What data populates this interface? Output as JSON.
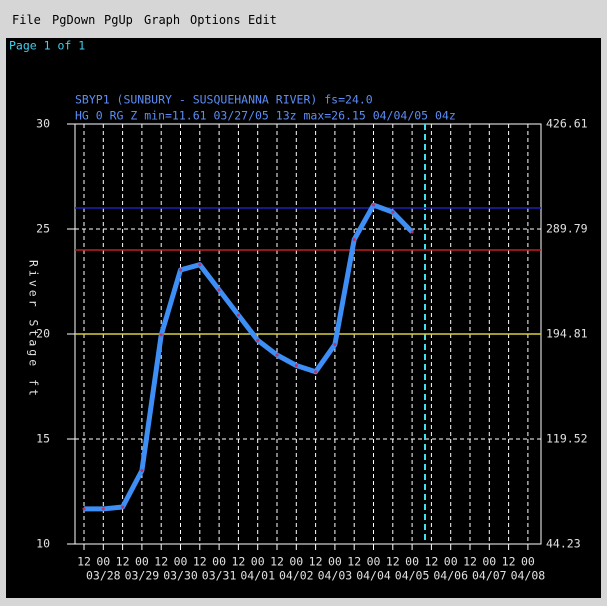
{
  "menu": [
    "File",
    "PgDown",
    "PgUp",
    "Graph",
    "Options",
    "Edit"
  ],
  "page_label": "Page 1 of 1",
  "chart_data": {
    "type": "line",
    "title": "SBYP1 (SUNBURY - SUSQUEHANNA RIVER) fs=24.0",
    "subtitle": "HG 0 RG Z min=11.61 03/27/05 13z max=26.15 04/04/05 04z",
    "y_label": "River Stage ft",
    "categories": [
      "12",
      "00",
      "12",
      "00",
      "12",
      "00",
      "12",
      "00",
      "12",
      "00",
      "12",
      "00",
      "12",
      "00",
      "12",
      "00",
      "12",
      "00",
      "12",
      "00",
      "12",
      "00",
      "12",
      "00"
    ],
    "date_labels": [
      "03/28",
      "03/29",
      "03/30",
      "03/31",
      "04/01",
      "04/02",
      "04/03",
      "04/04",
      "04/05",
      "04/06",
      "04/07",
      "04/08"
    ],
    "series": [
      {
        "name": "SBYP1",
        "color": "#3d8ef5",
        "marker_color": "#c03060",
        "values": [
          11.67,
          11.67,
          11.76,
          13.5,
          19.95,
          23.05,
          23.3,
          22.1,
          20.9,
          19.7,
          19.0,
          18.5,
          18.2,
          19.5,
          24.5,
          26.14,
          25.8,
          24.86,
          null,
          null,
          null,
          null,
          null,
          null
        ]
      }
    ],
    "ylim": [
      10,
      30
    ],
    "yticks": [
      10,
      15,
      20,
      25,
      30
    ],
    "discharge_labels": [
      44.23,
      119.52,
      194.81,
      289.79,
      426.61
    ],
    "thresholds": [
      {
        "value": 26,
        "color": "#2020b0"
      },
      {
        "value": 24,
        "color": "#c02020"
      },
      {
        "value": 20,
        "color": "#d8d040"
      }
    ],
    "grid": true
  }
}
